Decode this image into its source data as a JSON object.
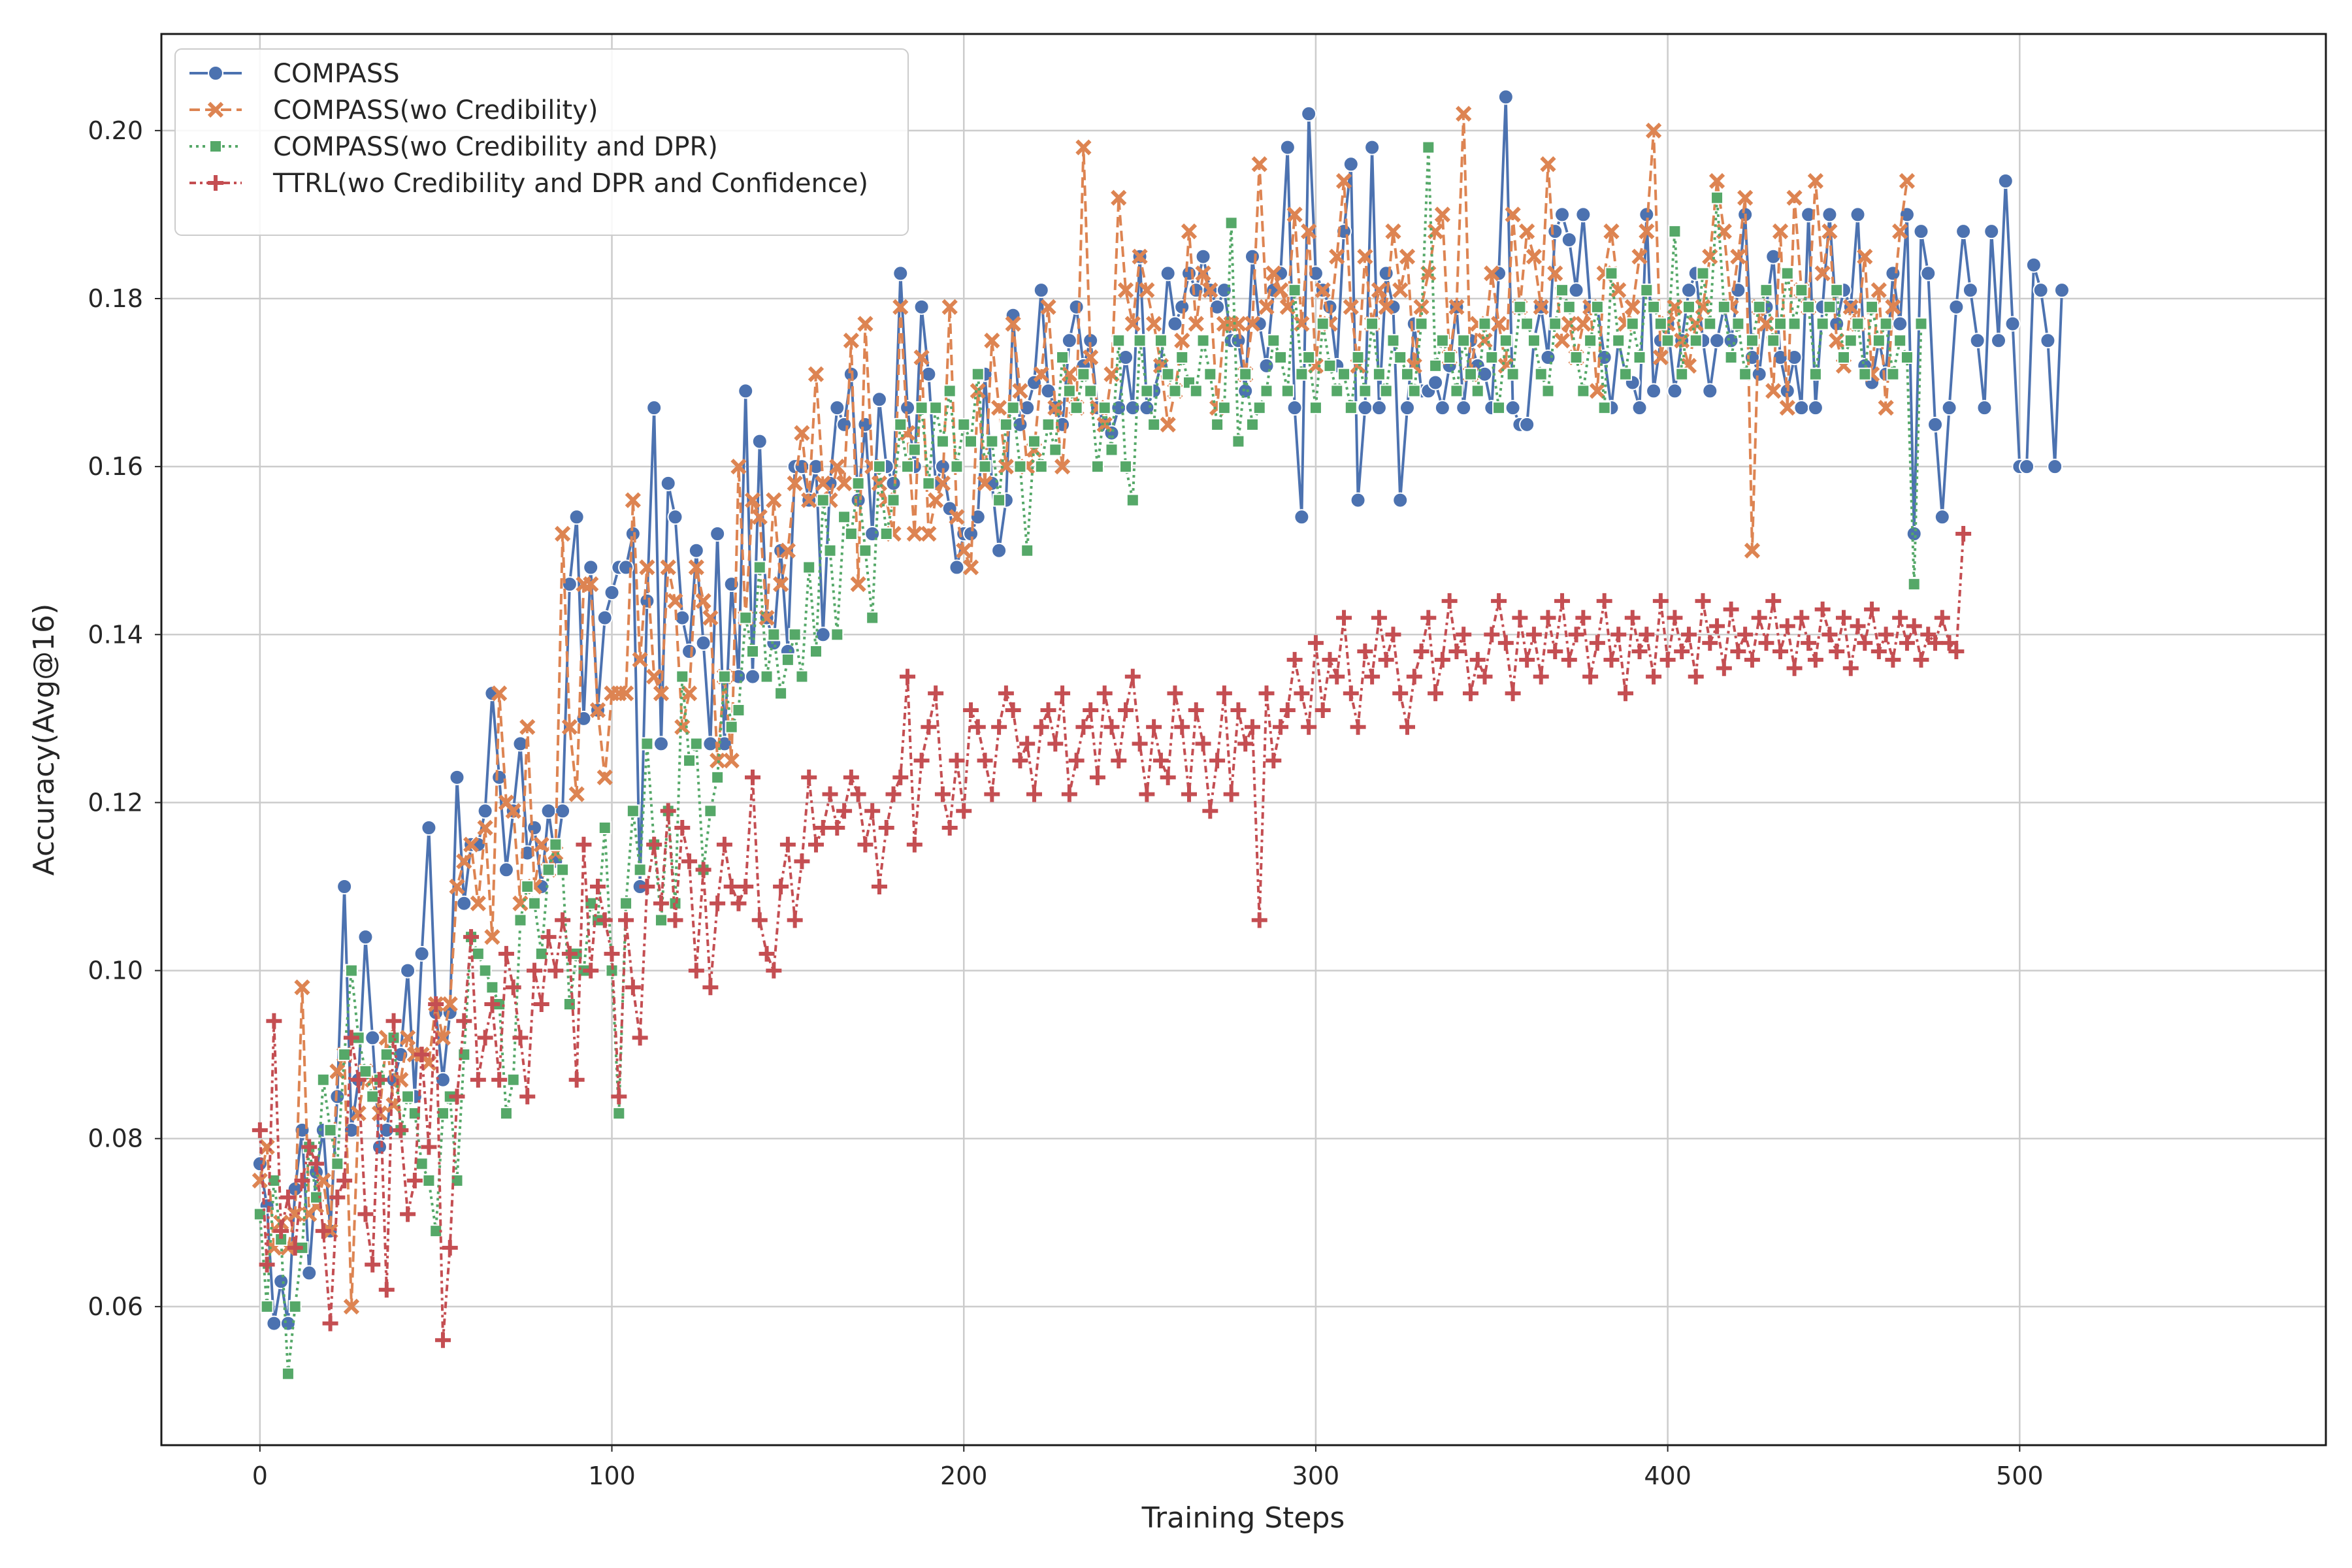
{
  "chart_data": {
    "type": "line",
    "title": "",
    "xlabel": "Training Steps",
    "ylabel": "Accuracy(Avg@16)",
    "xlim": [
      -28,
      587
    ],
    "ylim": [
      0.0435,
      0.2115
    ],
    "xticks": [
      0,
      100,
      200,
      300,
      400,
      500
    ],
    "yticks": [
      0.06,
      0.08,
      0.1,
      0.12,
      0.14,
      0.16,
      0.18,
      0.2
    ],
    "ytick_labels": [
      "0.06",
      "0.08",
      "0.10",
      "0.12",
      "0.14",
      "0.16",
      "0.18",
      "0.20"
    ],
    "grid": true,
    "legend_position": "top-left",
    "x_start": 0,
    "x_step": 2,
    "series": [
      {
        "name": "COMPASS",
        "color": "#4C72B0",
        "marker": "circle",
        "linestyle": "solid",
        "values": [
          0.077,
          0.072,
          0.058,
          0.063,
          0.058,
          0.074,
          0.081,
          0.064,
          0.076,
          0.081,
          0.069,
          0.085,
          0.11,
          0.081,
          0.087,
          0.104,
          0.092,
          0.079,
          0.081,
          0.087,
          0.09,
          0.1,
          0.085,
          0.102,
          0.117,
          0.095,
          0.087,
          0.095,
          0.123,
          0.108,
          0.115,
          0.115,
          0.119,
          0.133,
          0.123,
          0.112,
          0.119,
          0.127,
          0.114,
          0.117,
          0.11,
          0.119,
          0.113,
          0.119,
          0.146,
          0.154,
          0.13,
          0.148,
          0.131,
          0.142,
          0.145,
          0.148,
          0.148,
          0.152,
          0.11,
          0.144,
          0.167,
          0.127,
          0.158,
          0.154,
          0.142,
          0.138,
          0.15,
          0.139,
          0.127,
          0.152,
          0.127,
          0.146,
          0.135,
          0.169,
          0.135,
          0.163,
          0.142,
          0.139,
          0.15,
          0.138,
          0.16,
          0.16,
          0.156,
          0.16,
          0.14,
          0.158,
          0.167,
          0.165,
          0.171,
          0.156,
          0.165,
          0.152,
          0.168,
          0.16,
          0.158,
          0.183,
          0.167,
          0.16,
          0.179,
          0.171,
          0.158,
          0.16,
          0.155,
          0.148,
          0.152,
          0.152,
          0.154,
          0.171,
          0.158,
          0.15,
          0.156,
          0.178,
          0.165,
          0.167,
          0.17,
          0.181,
          0.169,
          0.167,
          0.165,
          0.175,
          0.179,
          0.172,
          0.175,
          0.167,
          0.165,
          0.164,
          0.167,
          0.173,
          0.167,
          0.185,
          0.167,
          0.169,
          0.172,
          0.183,
          0.177,
          0.179,
          0.183,
          0.181,
          0.185,
          0.181,
          0.179,
          0.181,
          0.175,
          0.175,
          0.169,
          0.185,
          0.177,
          0.172,
          0.181,
          0.183,
          0.198,
          0.167,
          0.154,
          0.202,
          0.183,
          0.181,
          0.179,
          0.172,
          0.188,
          0.196,
          0.156,
          0.167,
          0.198,
          0.167,
          0.183,
          0.179,
          0.156,
          0.167,
          0.177,
          0.169,
          0.169,
          0.17,
          0.167,
          0.172,
          0.179,
          0.167,
          0.175,
          0.172,
          0.171,
          0.167,
          0.183,
          0.204,
          0.167,
          0.165,
          0.165,
          0.175,
          0.179,
          0.173,
          0.188,
          0.19,
          0.187,
          0.181,
          0.19,
          0.179,
          0.179,
          0.173,
          0.167,
          0.175,
          0.171,
          0.17,
          0.167,
          0.19,
          0.169,
          0.175,
          0.177,
          0.169,
          0.175,
          0.181,
          0.183,
          0.175,
          0.169,
          0.175,
          0.179,
          0.175,
          0.181,
          0.19,
          0.173,
          0.171,
          0.179,
          0.185,
          0.173,
          0.169,
          0.173,
          0.167,
          0.19,
          0.167,
          0.179,
          0.19,
          0.177,
          0.181,
          0.179,
          0.19,
          0.172,
          0.17,
          0.175,
          0.171,
          0.183,
          0.177,
          0.19,
          0.152,
          0.188,
          0.183,
          0.165,
          0.154,
          0.167,
          0.179,
          0.188,
          0.181,
          0.175,
          0.167,
          0.188,
          0.175,
          0.194,
          0.177,
          0.16,
          0.16,
          0.184,
          0.181,
          0.175,
          0.16,
          0.181
        ]
      },
      {
        "name": "COMPASS(wo Credibility)",
        "color": "#DD8452",
        "marker": "x",
        "linestyle": "dashed",
        "values": [
          0.075,
          0.079,
          0.067,
          0.07,
          0.067,
          0.071,
          0.098,
          0.071,
          0.072,
          0.075,
          0.069,
          0.088,
          0.09,
          0.06,
          0.083,
          0.088,
          0.087,
          0.083,
          0.092,
          0.084,
          0.087,
          0.092,
          0.09,
          0.09,
          0.089,
          0.096,
          0.092,
          0.096,
          0.11,
          0.113,
          0.115,
          0.108,
          0.117,
          0.104,
          0.133,
          0.12,
          0.119,
          0.108,
          0.129,
          0.11,
          0.115,
          0.112,
          0.114,
          0.152,
          0.129,
          0.121,
          0.146,
          0.146,
          0.131,
          0.123,
          0.133,
          0.133,
          0.133,
          0.156,
          0.137,
          0.148,
          0.135,
          0.133,
          0.148,
          0.144,
          0.129,
          0.133,
          0.148,
          0.144,
          0.142,
          0.125,
          0.135,
          0.125,
          0.16,
          0.142,
          0.156,
          0.154,
          0.142,
          0.156,
          0.146,
          0.15,
          0.158,
          0.164,
          0.156,
          0.171,
          0.158,
          0.156,
          0.16,
          0.158,
          0.175,
          0.146,
          0.177,
          0.16,
          0.158,
          0.156,
          0.152,
          0.179,
          0.164,
          0.152,
          0.173,
          0.152,
          0.156,
          0.158,
          0.179,
          0.154,
          0.15,
          0.148,
          0.169,
          0.158,
          0.175,
          0.167,
          0.16,
          0.177,
          0.169,
          0.16,
          0.162,
          0.171,
          0.179,
          0.167,
          0.16,
          0.171,
          0.167,
          0.198,
          0.173,
          0.167,
          0.165,
          0.171,
          0.192,
          0.181,
          0.177,
          0.185,
          0.181,
          0.177,
          0.172,
          0.165,
          0.169,
          0.175,
          0.188,
          0.177,
          0.183,
          0.181,
          0.167,
          0.177,
          0.177,
          0.177,
          0.171,
          0.177,
          0.196,
          0.179,
          0.183,
          0.181,
          0.179,
          0.19,
          0.177,
          0.188,
          0.172,
          0.181,
          0.177,
          0.185,
          0.194,
          0.179,
          0.172,
          0.185,
          0.177,
          0.181,
          0.179,
          0.188,
          0.181,
          0.185,
          0.172,
          0.179,
          0.183,
          0.188,
          0.19,
          0.173,
          0.179,
          0.202,
          0.171,
          0.177,
          0.175,
          0.183,
          0.177,
          0.172,
          0.19,
          0.179,
          0.188,
          0.185,
          0.179,
          0.196,
          0.183,
          0.175,
          0.177,
          0.173,
          0.177,
          0.179,
          0.169,
          0.183,
          0.188,
          0.181,
          0.177,
          0.179,
          0.185,
          0.188,
          0.2,
          0.173,
          0.177,
          0.179,
          0.175,
          0.172,
          0.177,
          0.179,
          0.185,
          0.194,
          0.188,
          0.179,
          0.185,
          0.192,
          0.15,
          0.179,
          0.177,
          0.169,
          0.188,
          0.167,
          0.192,
          0.181,
          0.179,
          0.194,
          0.183,
          0.188,
          0.175,
          0.172,
          0.179,
          0.177,
          0.185,
          0.171,
          0.181,
          0.167,
          0.179,
          0.188,
          0.194
        ]
      },
      {
        "name": "COMPASS(wo Credibility and DPR)",
        "color": "#55A868",
        "marker": "square",
        "linestyle": "dotted",
        "values": [
          0.071,
          0.06,
          0.075,
          0.068,
          0.052,
          0.06,
          0.067,
          0.079,
          0.073,
          0.087,
          0.081,
          0.077,
          0.09,
          0.1,
          0.092,
          0.088,
          0.085,
          0.087,
          0.09,
          0.092,
          0.081,
          0.085,
          0.083,
          0.077,
          0.075,
          0.069,
          0.083,
          0.085,
          0.075,
          0.09,
          0.104,
          0.102,
          0.1,
          0.098,
          0.096,
          0.083,
          0.087,
          0.106,
          0.11,
          0.108,
          0.102,
          0.112,
          0.115,
          0.112,
          0.096,
          0.102,
          0.1,
          0.108,
          0.106,
          0.117,
          0.1,
          0.083,
          0.108,
          0.119,
          0.112,
          0.127,
          0.115,
          0.106,
          0.119,
          0.108,
          0.135,
          0.125,
          0.127,
          0.112,
          0.119,
          0.123,
          0.135,
          0.129,
          0.131,
          0.142,
          0.138,
          0.148,
          0.135,
          0.14,
          0.133,
          0.137,
          0.14,
          0.135,
          0.148,
          0.138,
          0.156,
          0.15,
          0.14,
          0.154,
          0.152,
          0.158,
          0.15,
          0.142,
          0.16,
          0.152,
          0.156,
          0.165,
          0.16,
          0.162,
          0.167,
          0.158,
          0.167,
          0.163,
          0.169,
          0.16,
          0.165,
          0.163,
          0.171,
          0.16,
          0.163,
          0.156,
          0.165,
          0.167,
          0.16,
          0.15,
          0.163,
          0.16,
          0.165,
          0.162,
          0.173,
          0.169,
          0.167,
          0.171,
          0.169,
          0.16,
          0.167,
          0.162,
          0.175,
          0.16,
          0.156,
          0.175,
          0.169,
          0.165,
          0.175,
          0.171,
          0.169,
          0.173,
          0.17,
          0.169,
          0.175,
          0.171,
          0.165,
          0.167,
          0.189,
          0.163,
          0.171,
          0.165,
          0.167,
          0.169,
          0.175,
          0.173,
          0.169,
          0.181,
          0.171,
          0.173,
          0.167,
          0.177,
          0.172,
          0.169,
          0.171,
          0.167,
          0.173,
          0.169,
          0.177,
          0.171,
          0.169,
          0.175,
          0.173,
          0.171,
          0.169,
          0.177,
          0.198,
          0.172,
          0.175,
          0.173,
          0.169,
          0.175,
          0.171,
          0.169,
          0.177,
          0.173,
          0.167,
          0.175,
          0.171,
          0.179,
          0.177,
          0.175,
          0.171,
          0.169,
          0.177,
          0.181,
          0.179,
          0.173,
          0.169,
          0.175,
          0.179,
          0.167,
          0.183,
          0.175,
          0.171,
          0.177,
          0.173,
          0.181,
          0.179,
          0.177,
          0.175,
          0.188,
          0.171,
          0.179,
          0.175,
          0.183,
          0.177,
          0.192,
          0.179,
          0.173,
          0.177,
          0.171,
          0.175,
          0.179,
          0.181,
          0.175,
          0.177,
          0.183,
          0.177,
          0.181,
          0.179,
          0.171,
          0.177,
          0.179,
          0.181,
          0.173,
          0.175,
          0.177,
          0.171,
          0.179,
          0.175,
          0.177,
          0.171,
          0.175,
          0.173,
          0.146,
          0.177
        ]
      },
      {
        "name": "TTRL(wo Credibility and DPR and Confidence)",
        "color": "#C44E52",
        "marker": "plus",
        "linestyle": "dashdot",
        "values": [
          0.081,
          0.065,
          0.094,
          0.069,
          0.073,
          0.067,
          0.075,
          0.079,
          0.077,
          0.069,
          0.058,
          0.073,
          0.075,
          0.092,
          0.087,
          0.071,
          0.065,
          0.087,
          0.062,
          0.094,
          0.081,
          0.071,
          0.075,
          0.09,
          0.079,
          0.096,
          0.056,
          0.067,
          0.085,
          0.094,
          0.104,
          0.087,
          0.092,
          0.096,
          0.087,
          0.102,
          0.098,
          0.092,
          0.085,
          0.1,
          0.096,
          0.104,
          0.1,
          0.106,
          0.102,
          0.087,
          0.115,
          0.1,
          0.11,
          0.106,
          0.102,
          0.085,
          0.106,
          0.098,
          0.092,
          0.11,
          0.115,
          0.108,
          0.119,
          0.106,
          0.117,
          0.113,
          0.1,
          0.112,
          0.098,
          0.108,
          0.115,
          0.11,
          0.108,
          0.11,
          0.123,
          0.106,
          0.102,
          0.1,
          0.11,
          0.115,
          0.106,
          0.113,
          0.123,
          0.115,
          0.117,
          0.121,
          0.117,
          0.119,
          0.123,
          0.121,
          0.115,
          0.119,
          0.11,
          0.117,
          0.121,
          0.123,
          0.135,
          0.115,
          0.125,
          0.129,
          0.133,
          0.121,
          0.117,
          0.125,
          0.119,
          0.131,
          0.129,
          0.125,
          0.121,
          0.129,
          0.133,
          0.131,
          0.125,
          0.127,
          0.121,
          0.129,
          0.131,
          0.127,
          0.133,
          0.121,
          0.125,
          0.129,
          0.131,
          0.123,
          0.133,
          0.129,
          0.125,
          0.131,
          0.135,
          0.127,
          0.121,
          0.129,
          0.125,
          0.123,
          0.133,
          0.129,
          0.121,
          0.131,
          0.127,
          0.119,
          0.125,
          0.133,
          0.121,
          0.131,
          0.127,
          0.129,
          0.106,
          0.133,
          0.125,
          0.129,
          0.131,
          0.137,
          0.133,
          0.129,
          0.139,
          0.131,
          0.137,
          0.135,
          0.142,
          0.133,
          0.129,
          0.138,
          0.135,
          0.142,
          0.137,
          0.14,
          0.133,
          0.129,
          0.135,
          0.138,
          0.142,
          0.133,
          0.137,
          0.144,
          0.138,
          0.14,
          0.133,
          0.137,
          0.135,
          0.14,
          0.144,
          0.139,
          0.133,
          0.142,
          0.137,
          0.14,
          0.135,
          0.142,
          0.138,
          0.144,
          0.137,
          0.14,
          0.142,
          0.135,
          0.139,
          0.144,
          0.137,
          0.14,
          0.133,
          0.142,
          0.138,
          0.14,
          0.135,
          0.144,
          0.137,
          0.142,
          0.138,
          0.14,
          0.135,
          0.144,
          0.139,
          0.141,
          0.136,
          0.143,
          0.138,
          0.14,
          0.137,
          0.142,
          0.139,
          0.144,
          0.138,
          0.141,
          0.136,
          0.142,
          0.139,
          0.137,
          0.143,
          0.14,
          0.138,
          0.142,
          0.136,
          0.141,
          0.139,
          0.143,
          0.138,
          0.14,
          0.137,
          0.142,
          0.139,
          0.141,
          0.137,
          0.14,
          0.139,
          0.142,
          0.139,
          0.138,
          0.152
        ]
      }
    ]
  }
}
